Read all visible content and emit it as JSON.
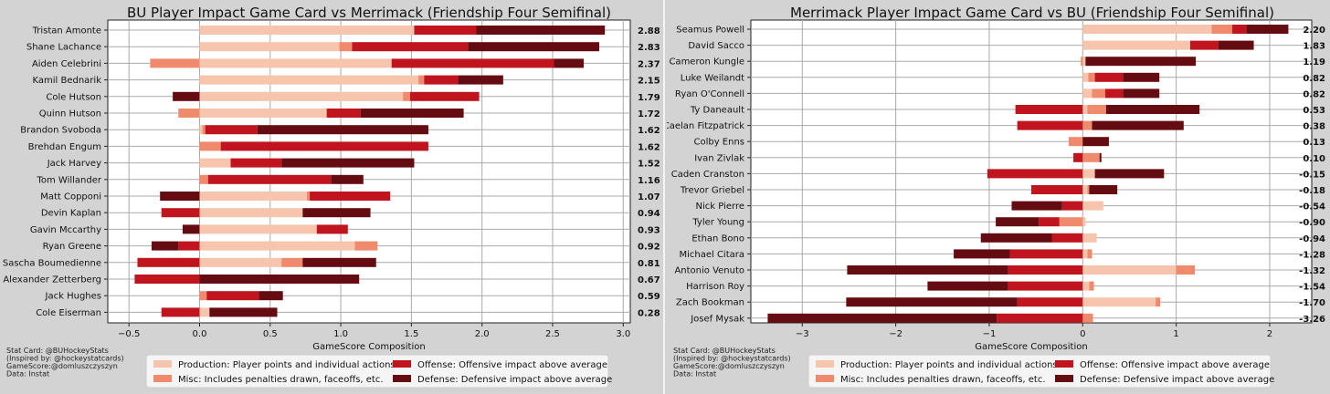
{
  "colors": {
    "background": "#d3d3d3",
    "production": "#f7c5ad",
    "misc": "#ef8a6d",
    "offense": "#c0151e",
    "defense": "#650c12",
    "grid": "#a9a9a9"
  },
  "chart_data": [
    {
      "type": "bar",
      "orientation": "horizontal",
      "stacked": true,
      "title": "BU Player Impact Game Card vs Merrimack (Friendship Four Semifinal)",
      "xlabel": "GameScore Composition",
      "xlim": [
        -0.65,
        3.05
      ],
      "xticks": [
        -0.5,
        0.0,
        0.5,
        1.0,
        1.5,
        2.0,
        2.5,
        3.0
      ],
      "xtick_labels": [
        "−0.5",
        "0.0",
        "0.5",
        "1.0",
        "1.5",
        "2.0",
        "2.5",
        "3.0"
      ],
      "grid": true,
      "components": [
        "Production",
        "Misc",
        "Offense",
        "Defense"
      ],
      "players": [
        {
          "name": "Tristan Amonte",
          "total": "2.88",
          "values": [
            1.52,
            0,
            0.44,
            0.91
          ]
        },
        {
          "name": "Shane Lachance",
          "total": "2.83",
          "values": [
            0.99,
            0.09,
            0.82,
            0.93
          ]
        },
        {
          "name": "Aiden Celebrini",
          "total": "2.37",
          "values": [
            1.36,
            -0.35,
            1.15,
            0.21
          ]
        },
        {
          "name": "Kamil Bednarik",
          "total": "2.15",
          "values": [
            1.55,
            0.04,
            0.24,
            0.32
          ]
        },
        {
          "name": "Cole Hutson",
          "total": "1.79",
          "values": [
            1.44,
            0.05,
            0.49,
            -0.19
          ]
        },
        {
          "name": "Quinn Hutson",
          "total": "1.72",
          "values": [
            0.9,
            -0.15,
            0.24,
            0.73
          ]
        },
        {
          "name": "Brandon Svoboda",
          "total": "1.62",
          "values": [
            0.02,
            0.02,
            0.37,
            1.21
          ]
        },
        {
          "name": "Brehdan Engum",
          "total": "1.62",
          "values": [
            0,
            0.15,
            1.47,
            0
          ]
        },
        {
          "name": "Jack Harvey",
          "total": "1.52",
          "values": [
            0.22,
            0,
            0.36,
            0.94
          ]
        },
        {
          "name": "Tom Willander",
          "total": "1.16",
          "values": [
            0,
            0.06,
            0.87,
            0.23
          ]
        },
        {
          "name": "Matt Copponi",
          "total": "1.07",
          "values": [
            0.76,
            0.02,
            0.57,
            -0.28
          ]
        },
        {
          "name": "Devin Kaplan",
          "total": "0.94",
          "values": [
            0.73,
            0,
            -0.27,
            0.48
          ]
        },
        {
          "name": "Gavin Mccarthy",
          "total": "0.93",
          "values": [
            0.83,
            0,
            0.22,
            -0.12
          ]
        },
        {
          "name": "Ryan Greene",
          "total": "0.92",
          "values": [
            1.1,
            0.16,
            -0.15,
            -0.19
          ]
        },
        {
          "name": "Sascha Boumedienne",
          "total": "0.81",
          "values": [
            0.58,
            0.15,
            -0.44,
            0.52
          ]
        },
        {
          "name": "Alexander Zetterberg",
          "total": "0.67",
          "values": [
            0,
            0,
            -0.46,
            1.13
          ]
        },
        {
          "name": "Jack Hughes",
          "total": "0.59",
          "values": [
            0,
            0.05,
            0.37,
            0.17
          ]
        },
        {
          "name": "Cole Eiserman",
          "total": "0.28",
          "values": [
            0.07,
            0,
            -0.27,
            0.48
          ]
        }
      ]
    },
    {
      "type": "bar",
      "orientation": "horizontal",
      "stacked": true,
      "title": "Merrimack Player Impact Game Card vs BU (Friendship Four Semifinal)",
      "xlabel": "GameScore Composition",
      "xlim": [
        -3.55,
        2.45
      ],
      "xticks": [
        -3,
        -2,
        -1,
        0,
        1,
        2
      ],
      "xtick_labels": [
        "−3",
        "−2",
        "−1",
        "0",
        "1",
        "2"
      ],
      "grid": true,
      "components": [
        "Production",
        "Misc",
        "Offense",
        "Defense"
      ],
      "players": [
        {
          "name": "Seamus Powell",
          "total": "2.20",
          "values": [
            1.38,
            0.22,
            0.15,
            0.45
          ]
        },
        {
          "name": "David Sacco",
          "total": "1.83",
          "values": [
            1.15,
            0,
            0.3,
            0.38
          ]
        },
        {
          "name": "Cameron Kungle",
          "total": "1.19",
          "values": [
            0.03,
            -0.02,
            0,
            1.18
          ]
        },
        {
          "name": "Luke Weilandt",
          "total": "0.82",
          "values": [
            0.06,
            0.07,
            0.3,
            0.39
          ]
        },
        {
          "name": "Ryan O'Connell",
          "total": "0.82",
          "values": [
            0.1,
            0.14,
            0.19,
            0.39
          ]
        },
        {
          "name": "Ty Daneault",
          "total": "0.53",
          "values": [
            0.05,
            0.2,
            -0.72,
            1.0
          ]
        },
        {
          "name": "Caelan Fitzpatrick",
          "total": "0.38",
          "values": [
            0,
            0.1,
            -0.7,
            0.98
          ]
        },
        {
          "name": "Colby Enns",
          "total": "0.13",
          "values": [
            0,
            -0.15,
            0,
            0.28
          ]
        },
        {
          "name": "Ivan Zivlak",
          "total": "0.10",
          "values": [
            0,
            0.18,
            -0.1,
            0.02
          ]
        },
        {
          "name": "Caden Cranston",
          "total": "-0.15",
          "values": [
            0.13,
            0,
            -1.02,
            0.74
          ]
        },
        {
          "name": "Trevor Griebel",
          "total": "-0.18",
          "values": [
            0.05,
            0.02,
            -0.55,
            0.3
          ]
        },
        {
          "name": "Nick Pierre",
          "total": "-0.54",
          "values": [
            0.22,
            0,
            -0.22,
            -0.54
          ]
        },
        {
          "name": "Tyler Young",
          "total": "-0.90",
          "values": [
            0.03,
            -0.25,
            -0.22,
            -0.46
          ]
        },
        {
          "name": "Ethan Bono",
          "total": "-0.94",
          "values": [
            0.15,
            0,
            -0.33,
            -0.76
          ]
        },
        {
          "name": "Michael Citara",
          "total": "-1.28",
          "values": [
            0.05,
            0.05,
            -0.78,
            -0.6
          ]
        },
        {
          "name": "Antonio Venuto",
          "total": "-1.32",
          "values": [
            1.0,
            0.2,
            -0.8,
            -1.72
          ]
        },
        {
          "name": "Harrison Roy",
          "total": "-1.54",
          "values": [
            0.07,
            0.05,
            -0.8,
            -0.86
          ]
        },
        {
          "name": "Zach Bookman",
          "total": "-1.70",
          "values": [
            0.78,
            0.05,
            -0.7,
            -1.83
          ]
        },
        {
          "name": "Josef Mysak",
          "total": "-3.26",
          "values": [
            0,
            0.11,
            -0.92,
            -2.45
          ]
        }
      ]
    }
  ],
  "credits": [
    [
      "Stat Card: @BUHockeyStats",
      "(Inspired by: @hockeystatcards)",
      "GameScore:@domluszczyszyn",
      "Data: Instat"
    ],
    [
      "Stat Card: @BUHockeyStats",
      "(Inspired by: @hockeystatcards)",
      "GameScore:@domluszczyszyn",
      "Data: Instat"
    ]
  ],
  "legend": {
    "production": "Production: Player points and individual actions",
    "misc": "Misc: Includes penalties drawn, faceoffs, etc.",
    "offense": "Offense: Offensive impact above average",
    "defense": "Defense: Defensive impact above average"
  }
}
